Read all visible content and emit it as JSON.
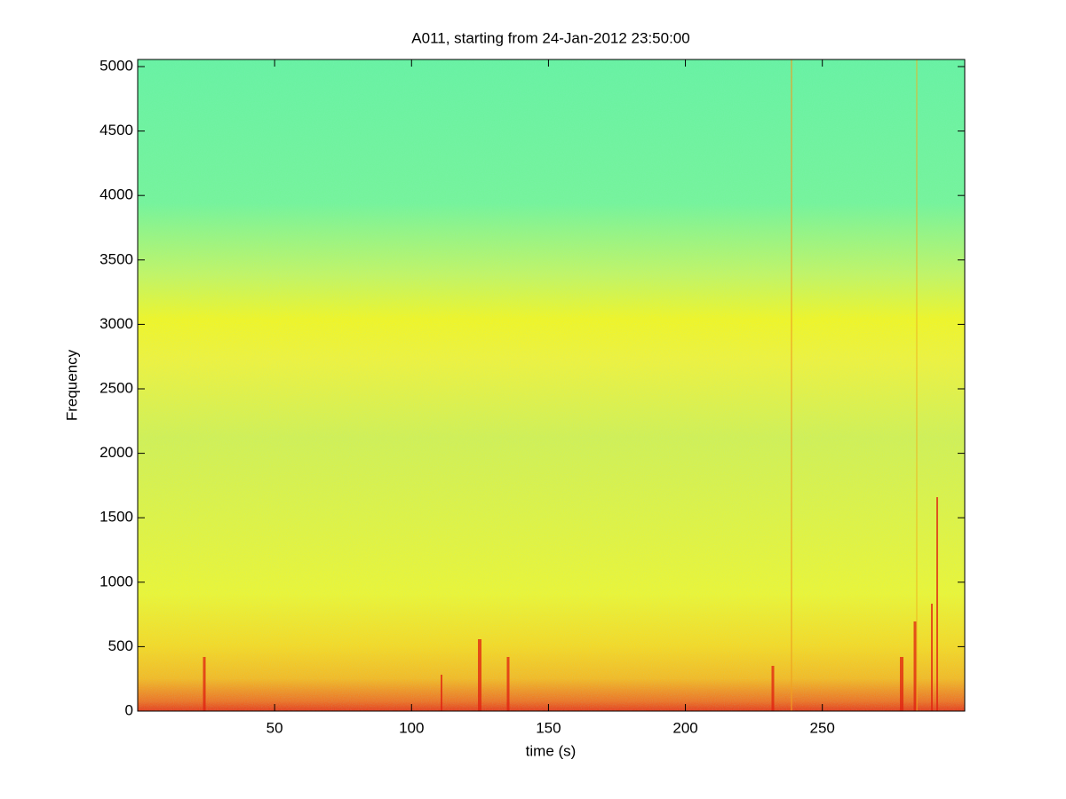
{
  "chart_data": {
    "type": "spectrogram",
    "title": "A011, starting from 24-Jan-2012 23:50:00",
    "xlabel": "time (s)",
    "ylabel": "Frequency",
    "xlim": [
      0,
      302
    ],
    "xticks": [
      50,
      100,
      150,
      200,
      250
    ],
    "ylim": [
      0,
      5055
    ],
    "yticks": [
      0,
      500,
      1000,
      1500,
      2000,
      2500,
      3000,
      3500,
      4000,
      4500,
      5000
    ]
  }
}
